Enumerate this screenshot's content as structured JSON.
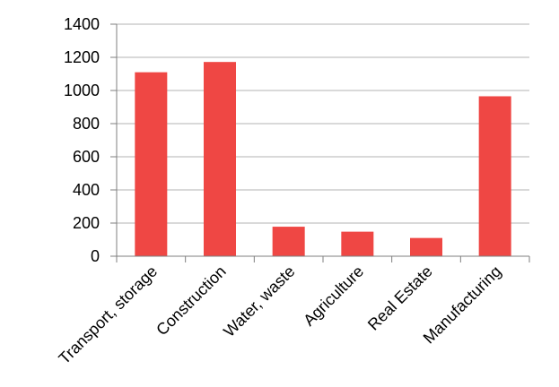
{
  "chart_data": {
    "type": "bar",
    "categories": [
      "Transport, storage",
      "Construction",
      "Water, waste",
      "Agriculture",
      "Real Estate",
      "Manufacturing"
    ],
    "values": [
      1110,
      1172,
      178,
      148,
      110,
      965
    ],
    "yticks": [
      0,
      200,
      400,
      600,
      800,
      1000,
      1200,
      1400
    ],
    "ylim": [
      0,
      1400
    ],
    "grid": true,
    "colors": {
      "bar": "#ef4744",
      "grid": "#b3b3b3",
      "axis": "#7f7f7f"
    }
  }
}
